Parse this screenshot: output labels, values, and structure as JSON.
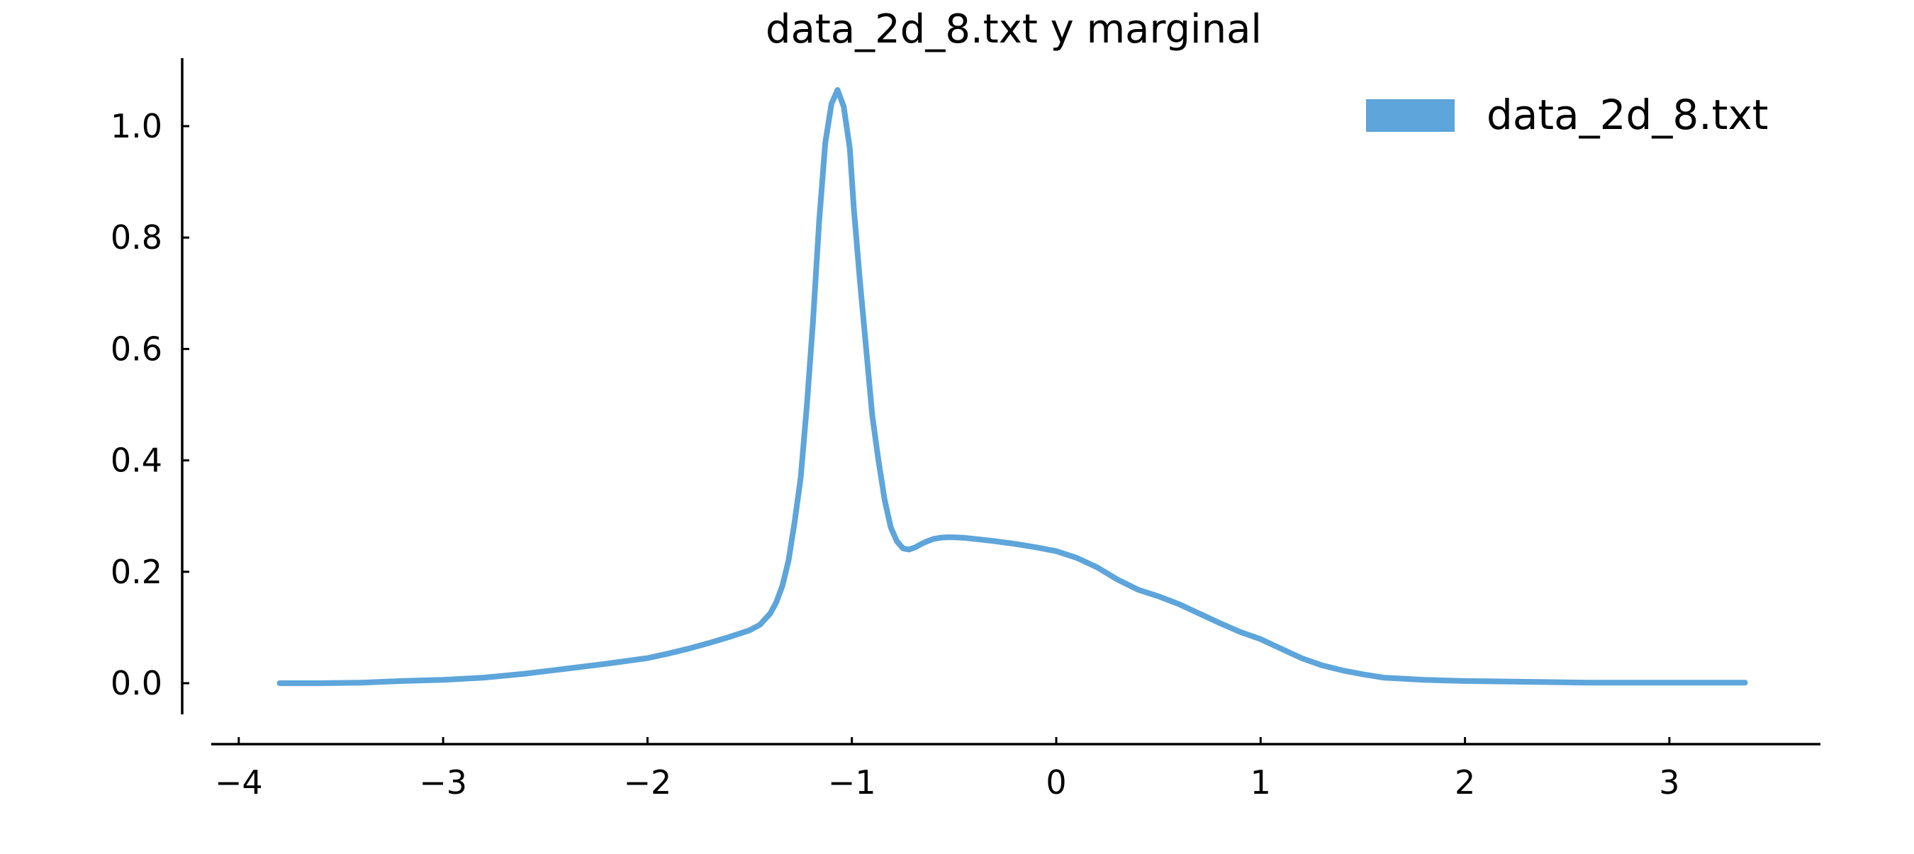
{
  "chart_data": {
    "type": "line",
    "title": "data_2d_8.txt y marginal",
    "xlabel": "",
    "ylabel": "",
    "xlim": [
      -4.2,
      3.7
    ],
    "ylim": [
      -0.055,
      1.12
    ],
    "xticks": [
      -4,
      -3,
      -2,
      -1,
      0,
      1,
      2,
      3
    ],
    "xtick_labels": [
      "−4",
      "−3",
      "−2",
      "−1",
      "0",
      "1",
      "2",
      "3"
    ],
    "yticks": [
      0.0,
      0.2,
      0.4,
      0.6,
      0.8,
      1.0
    ],
    "ytick_labels": [
      "0.0",
      "0.2",
      "0.4",
      "0.6",
      "0.8",
      "1.0"
    ],
    "grid": false,
    "legend_position": "top-right",
    "series": [
      {
        "name": "data_2d_8.txt",
        "color": "#5da5da",
        "x": [
          -3.8,
          -3.6,
          -3.4,
          -3.2,
          -3.0,
          -2.8,
          -2.6,
          -2.4,
          -2.2,
          -2.0,
          -1.9,
          -1.8,
          -1.7,
          -1.6,
          -1.5,
          -1.45,
          -1.4,
          -1.37,
          -1.34,
          -1.31,
          -1.28,
          -1.25,
          -1.22,
          -1.19,
          -1.16,
          -1.13,
          -1.1,
          -1.07,
          -1.04,
          -1.01,
          -0.99,
          -0.96,
          -0.93,
          -0.9,
          -0.87,
          -0.84,
          -0.81,
          -0.78,
          -0.75,
          -0.72,
          -0.69,
          -0.66,
          -0.63,
          -0.6,
          -0.57,
          -0.54,
          -0.5,
          -0.45,
          -0.4,
          -0.3,
          -0.2,
          -0.1,
          0.0,
          0.1,
          0.2,
          0.3,
          0.4,
          0.5,
          0.6,
          0.7,
          0.8,
          0.9,
          1.0,
          1.1,
          1.2,
          1.3,
          1.4,
          1.5,
          1.6,
          1.8,
          2.0,
          2.2,
          2.4,
          2.6,
          2.8,
          3.0,
          3.2,
          3.37
        ],
        "y": [
          0.0,
          0.0,
          0.001,
          0.004,
          0.006,
          0.01,
          0.017,
          0.026,
          0.035,
          0.045,
          0.053,
          0.062,
          0.072,
          0.083,
          0.095,
          0.105,
          0.125,
          0.145,
          0.175,
          0.22,
          0.29,
          0.37,
          0.5,
          0.65,
          0.83,
          0.97,
          1.04,
          1.065,
          1.035,
          0.96,
          0.85,
          0.72,
          0.6,
          0.48,
          0.4,
          0.33,
          0.28,
          0.255,
          0.242,
          0.24,
          0.244,
          0.25,
          0.255,
          0.259,
          0.261,
          0.262,
          0.262,
          0.261,
          0.259,
          0.255,
          0.25,
          0.244,
          0.237,
          0.225,
          0.208,
          0.186,
          0.168,
          0.156,
          0.142,
          0.125,
          0.108,
          0.092,
          0.079,
          0.062,
          0.045,
          0.032,
          0.023,
          0.016,
          0.01,
          0.006,
          0.004,
          0.003,
          0.002,
          0.001,
          0.001,
          0.001,
          0.001,
          0.001
        ]
      }
    ]
  }
}
